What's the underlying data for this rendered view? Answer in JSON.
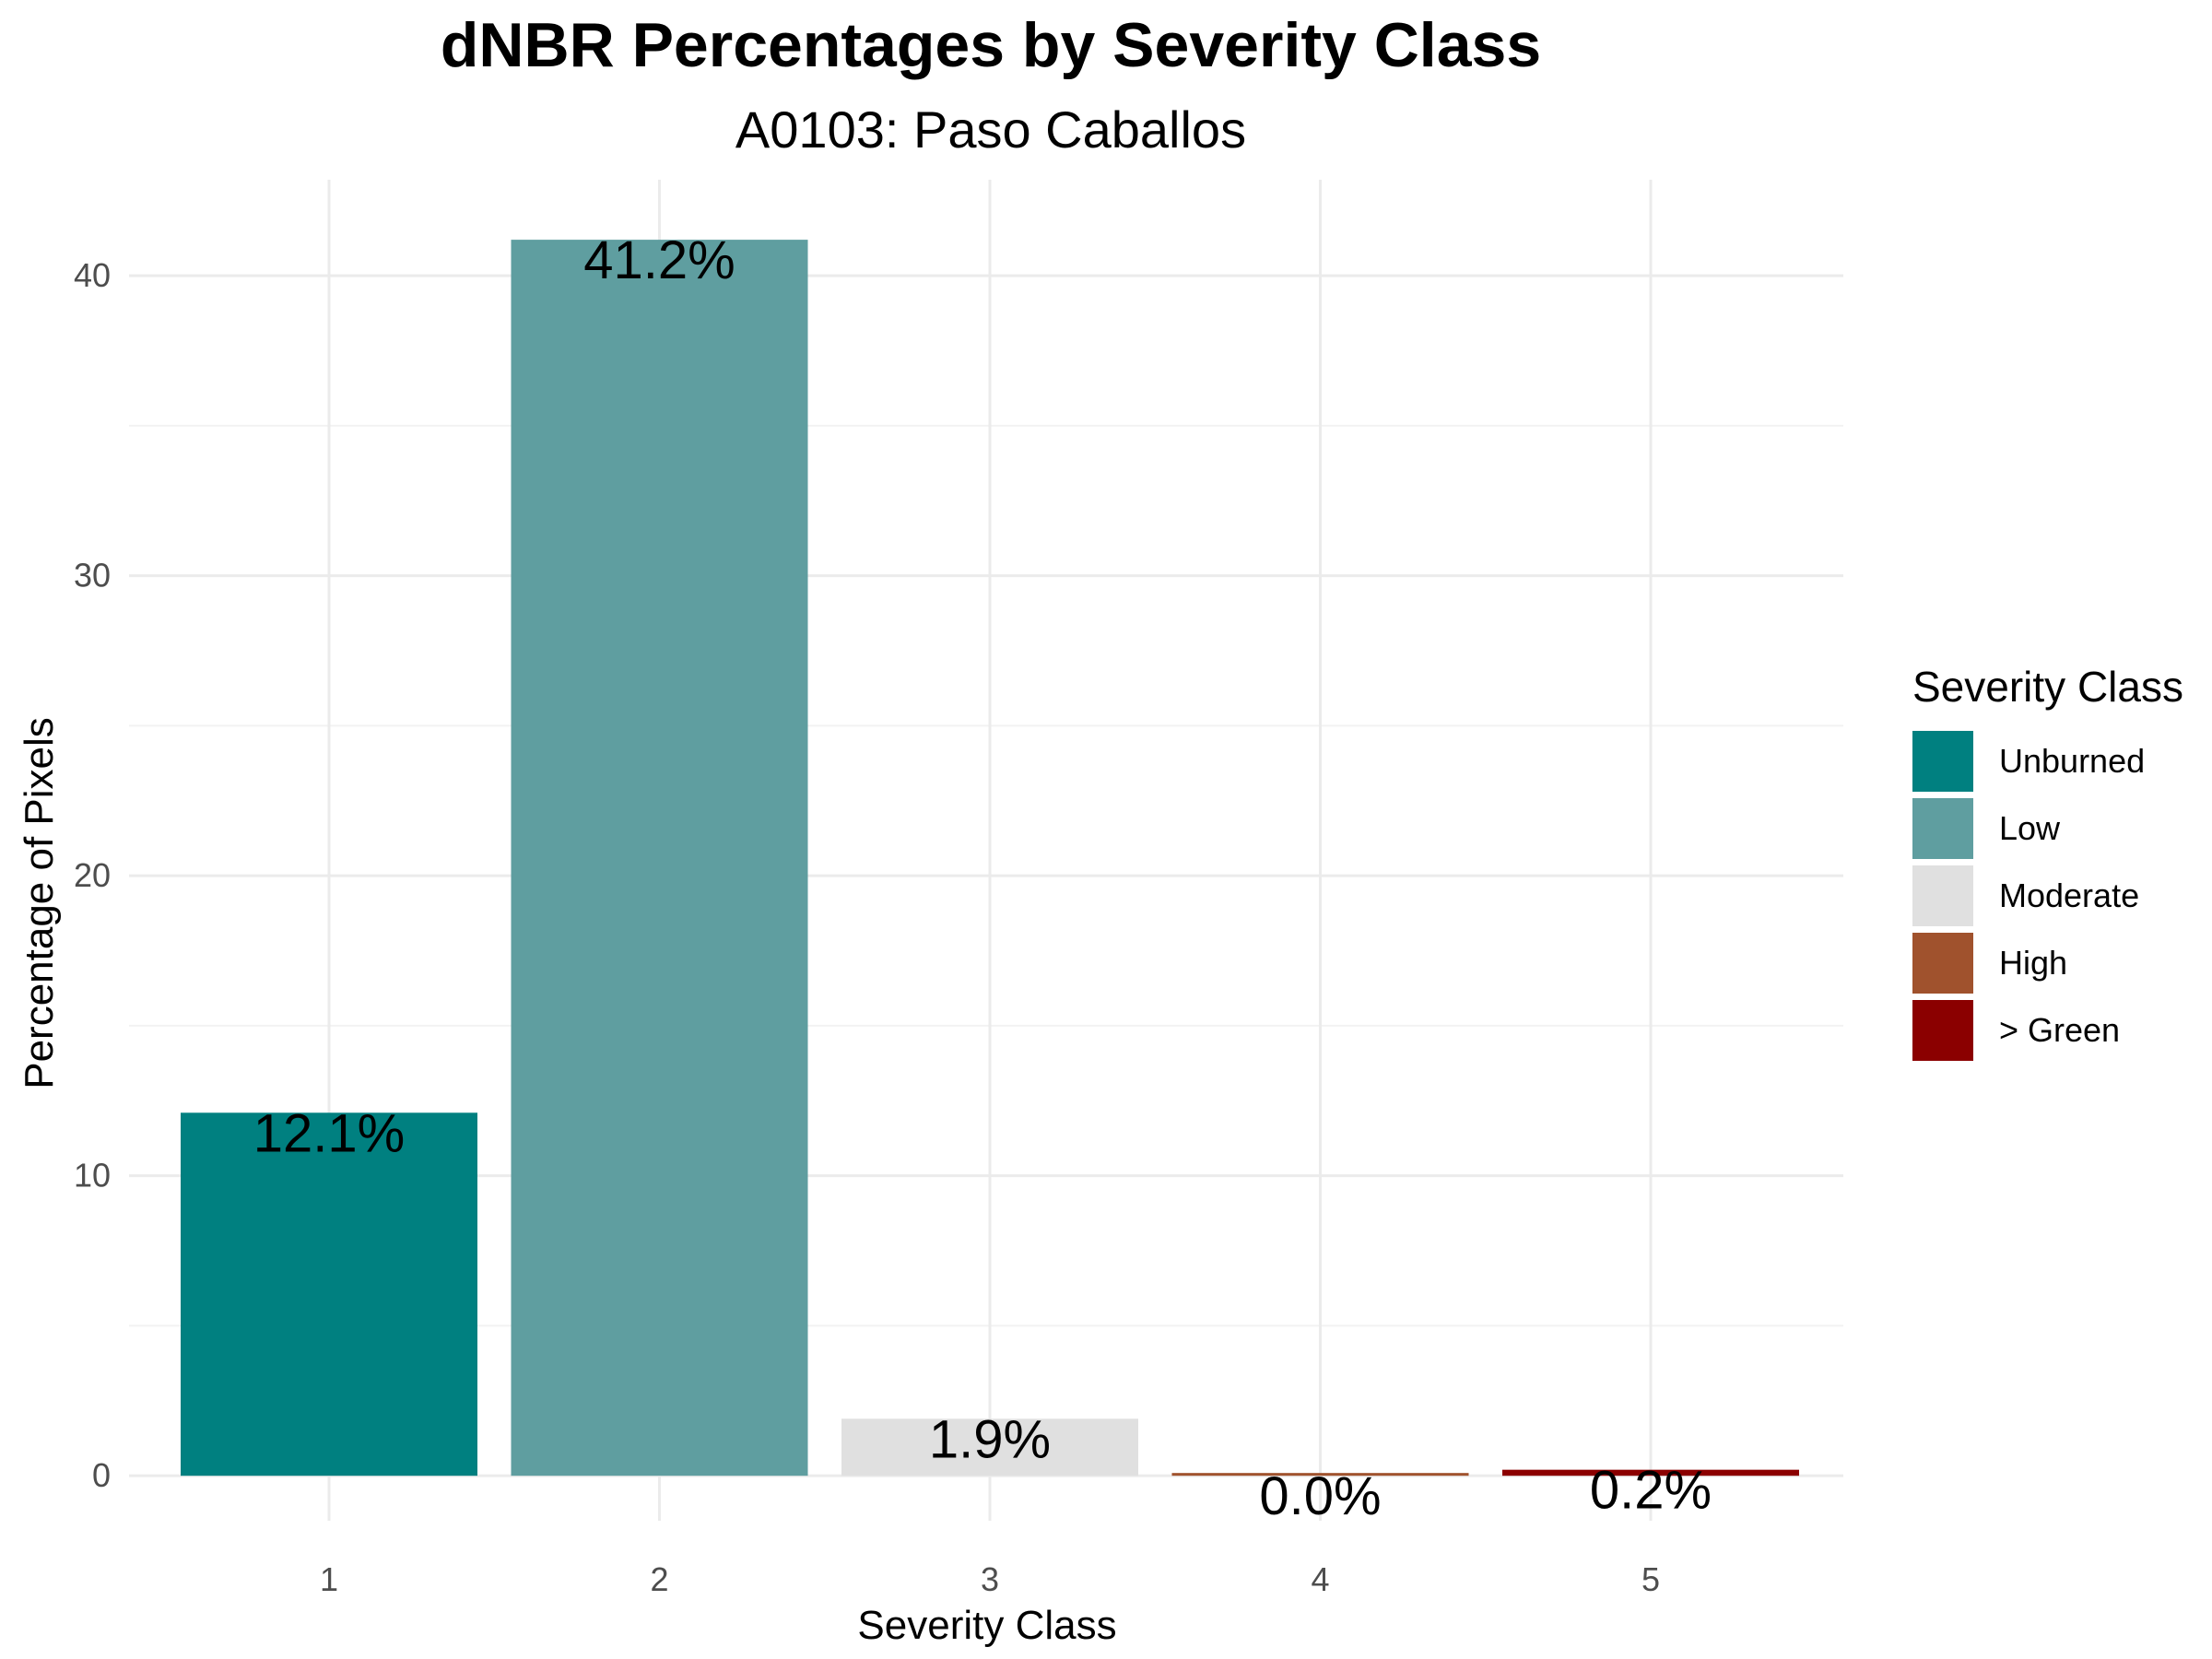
{
  "title": "dNBR Percentages by Severity Class",
  "subtitle": "A0103: Paso Caballos",
  "chart_data": {
    "type": "bar",
    "title": "dNBR Percentages by Severity Class",
    "subtitle": "A0103: Paso Caballos",
    "xlabel": "Severity Class",
    "ylabel": "Percentage of Pixels",
    "categories": [
      "1",
      "2",
      "3",
      "4",
      "5"
    ],
    "values": [
      12.1,
      41.2,
      1.9,
      0.0,
      0.2
    ],
    "data_labels": [
      "12.1%",
      "41.2%",
      "1.9%",
      "0.0%",
      "0.2%"
    ],
    "colors": [
      "#008080",
      "#5F9EA0",
      "#E0E0E0",
      "#A0522D",
      "#8B0000"
    ],
    "ylim": [
      -1.5,
      43.2
    ],
    "yticks": [
      0,
      10,
      20,
      30,
      40
    ],
    "grid": true,
    "legend": {
      "title": "Severity Class",
      "position": "right",
      "entries": [
        {
          "label": "Unburned",
          "color": "#008080"
        },
        {
          "label": "Low",
          "color": "#5F9EA0"
        },
        {
          "label": "Moderate",
          "color": "#E0E0E0"
        },
        {
          "label": "High",
          "color": "#A0522D"
        },
        {
          "label": "> Green",
          "color": "#8B0000"
        }
      ]
    }
  }
}
